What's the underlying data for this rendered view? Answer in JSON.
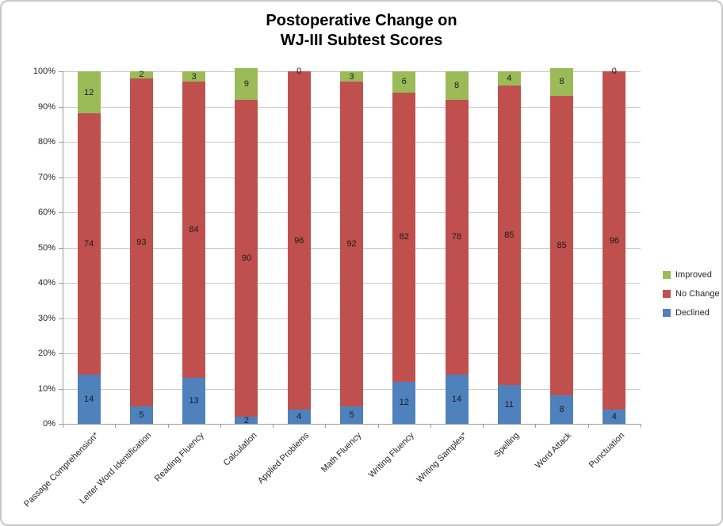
{
  "window": {
    "background": "#FFFFFF",
    "border_color": "#C6C6C6"
  },
  "chart_data": {
    "type": "bar",
    "subtype": "stacked-100-percent",
    "title": "Postoperative Change on WJ-III Subtest Scores",
    "title_lines": [
      "Postoperative Change on",
      "WJ-III Subtest Scores"
    ],
    "categories": [
      "Passage Comprehension*",
      "Letter Word Identification",
      "Reading Fluency",
      "Calculation",
      "Applied Problems",
      "Math Fluency",
      "Writing Fluency",
      "Writing Samples*",
      "Spelling",
      "Word Attack",
      "Punctuation"
    ],
    "series": [
      {
        "name": "Declined",
        "color": "#4F81BD",
        "values": [
          14,
          5,
          13,
          2,
          4,
          5,
          12,
          14,
          11,
          8,
          4
        ]
      },
      {
        "name": "No Change",
        "color": "#C0504D",
        "values": [
          74,
          93,
          84,
          90,
          96,
          92,
          82,
          78,
          85,
          85,
          96
        ]
      },
      {
        "name": "Improved",
        "color": "#9BBB59",
        "values": [
          12,
          2,
          3,
          9,
          0,
          3,
          6,
          8,
          4,
          8,
          0
        ]
      }
    ],
    "data_labels": true,
    "legend": {
      "position": "right",
      "entries": [
        "Improved",
        "No Change",
        "Declined"
      ]
    },
    "y_axis": {
      "min": 0,
      "max": 100,
      "step": 10,
      "tick_labels": [
        "0%",
        "10%",
        "20%",
        "30%",
        "40%",
        "50%",
        "60%",
        "70%",
        "80%",
        "90%",
        "100%"
      ]
    },
    "x_axis": {
      "label_rotation_deg": -45
    },
    "grid": true
  }
}
